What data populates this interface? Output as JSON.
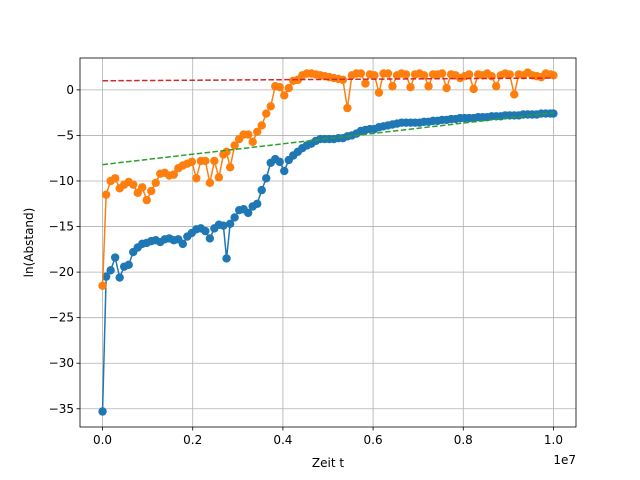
{
  "chart_data": {
    "type": "line",
    "title": "",
    "xlabel": "Zeit t",
    "ylabel": "ln(Abstand)",
    "x_offset_label": "1e7",
    "xlim": [
      -0.05,
      1.05
    ],
    "ylim": [
      -37,
      3.5
    ],
    "x_scale_multiplier": 10000000,
    "xticks": [
      0.0,
      0.2,
      0.4,
      0.6,
      0.8,
      1.0
    ],
    "xtick_labels": [
      "0.0",
      "0.2",
      "0.4",
      "0.6",
      "0.8",
      "1.0"
    ],
    "yticks": [
      0,
      -5,
      -10,
      -15,
      -20,
      -25,
      -30,
      -35
    ],
    "ytick_labels": [
      "0",
      "−5",
      "−10",
      "−15",
      "−20",
      "−25",
      "−30",
      "−35"
    ],
    "grid": true,
    "series": [
      {
        "color": "#1f77b4",
        "style": "line-marker",
        "points": [
          [
            0.0,
            -35.3
          ],
          [
            0.008,
            -20.5
          ],
          [
            0.018,
            -19.8
          ],
          [
            0.028,
            -18.4
          ],
          [
            0.038,
            -20.6
          ],
          [
            0.048,
            -19.4
          ],
          [
            0.058,
            -19.2
          ],
          [
            0.068,
            -17.8
          ],
          [
            0.078,
            -17.3
          ],
          [
            0.088,
            -16.9
          ],
          [
            0.098,
            -16.8
          ],
          [
            0.108,
            -16.6
          ],
          [
            0.118,
            -16.5
          ],
          [
            0.128,
            -16.7
          ],
          [
            0.138,
            -16.4
          ],
          [
            0.148,
            -16.3
          ],
          [
            0.158,
            -16.5
          ],
          [
            0.168,
            -16.4
          ],
          [
            0.178,
            -16.9
          ],
          [
            0.188,
            -16.1
          ],
          [
            0.198,
            -15.7
          ],
          [
            0.208,
            -15.3
          ],
          [
            0.218,
            -15.2
          ],
          [
            0.228,
            -15.5
          ],
          [
            0.238,
            -16.3
          ],
          [
            0.248,
            -15.2
          ],
          [
            0.258,
            -14.8
          ],
          [
            0.268,
            -14.9
          ],
          [
            0.275,
            -18.5
          ],
          [
            0.283,
            -14.7
          ],
          [
            0.293,
            -14.0
          ],
          [
            0.303,
            -13.2
          ],
          [
            0.313,
            -13.1
          ],
          [
            0.323,
            -13.5
          ],
          [
            0.333,
            -12.8
          ],
          [
            0.343,
            -12.5
          ],
          [
            0.353,
            -11.0
          ],
          [
            0.363,
            -9.7
          ],
          [
            0.373,
            -8.0
          ],
          [
            0.383,
            -7.6
          ],
          [
            0.393,
            -7.9
          ],
          [
            0.403,
            -8.9
          ],
          [
            0.413,
            -7.7
          ],
          [
            0.423,
            -7.2
          ],
          [
            0.433,
            -6.8
          ],
          [
            0.443,
            -6.4
          ],
          [
            0.453,
            -6.1
          ],
          [
            0.463,
            -5.9
          ],
          [
            0.473,
            -5.6
          ],
          [
            0.483,
            -5.4
          ],
          [
            0.493,
            -5.4
          ],
          [
            0.503,
            -5.4
          ],
          [
            0.513,
            -5.4
          ],
          [
            0.523,
            -5.3
          ],
          [
            0.533,
            -5.3
          ],
          [
            0.543,
            -5.1
          ],
          [
            0.553,
            -5.0
          ],
          [
            0.563,
            -4.8
          ],
          [
            0.573,
            -4.5
          ],
          [
            0.583,
            -4.4
          ],
          [
            0.593,
            -4.3
          ],
          [
            0.603,
            -4.3
          ],
          [
            0.613,
            -4.1
          ],
          [
            0.623,
            -4.0
          ],
          [
            0.633,
            -3.9
          ],
          [
            0.643,
            -3.8
          ],
          [
            0.653,
            -3.7
          ],
          [
            0.663,
            -3.6
          ],
          [
            0.673,
            -3.6
          ],
          [
            0.683,
            -3.6
          ],
          [
            0.693,
            -3.6
          ],
          [
            0.703,
            -3.6
          ],
          [
            0.713,
            -3.5
          ],
          [
            0.723,
            -3.5
          ],
          [
            0.733,
            -3.4
          ],
          [
            0.743,
            -3.4
          ],
          [
            0.753,
            -3.3
          ],
          [
            0.763,
            -3.3
          ],
          [
            0.773,
            -3.2
          ],
          [
            0.783,
            -3.2
          ],
          [
            0.793,
            -3.1
          ],
          [
            0.803,
            -3.1
          ],
          [
            0.813,
            -3.1
          ],
          [
            0.823,
            -3.1
          ],
          [
            0.833,
            -3.0
          ],
          [
            0.843,
            -3.0
          ],
          [
            0.853,
            -3.0
          ],
          [
            0.863,
            -2.9
          ],
          [
            0.873,
            -2.9
          ],
          [
            0.883,
            -2.9
          ],
          [
            0.893,
            -2.8
          ],
          [
            0.903,
            -2.8
          ],
          [
            0.913,
            -2.8
          ],
          [
            0.923,
            -2.8
          ],
          [
            0.933,
            -2.7
          ],
          [
            0.943,
            -2.7
          ],
          [
            0.953,
            -2.7
          ],
          [
            0.963,
            -2.7
          ],
          [
            0.973,
            -2.6
          ],
          [
            0.983,
            -2.6
          ],
          [
            0.993,
            -2.6
          ],
          [
            1.0,
            -2.6
          ]
        ]
      },
      {
        "color": "#ff7f0e",
        "style": "line-marker",
        "points": [
          [
            0.0,
            -21.5
          ],
          [
            0.008,
            -11.5
          ],
          [
            0.018,
            -10.0
          ],
          [
            0.028,
            -9.7
          ],
          [
            0.038,
            -10.8
          ],
          [
            0.048,
            -10.4
          ],
          [
            0.058,
            -10.1
          ],
          [
            0.068,
            -10.4
          ],
          [
            0.078,
            -11.3
          ],
          [
            0.088,
            -10.7
          ],
          [
            0.098,
            -12.1
          ],
          [
            0.108,
            -11.1
          ],
          [
            0.118,
            -10.2
          ],
          [
            0.128,
            -9.2
          ],
          [
            0.138,
            -9.1
          ],
          [
            0.148,
            -9.4
          ],
          [
            0.158,
            -9.3
          ],
          [
            0.168,
            -8.6
          ],
          [
            0.178,
            -8.3
          ],
          [
            0.188,
            -8.1
          ],
          [
            0.198,
            -7.9
          ],
          [
            0.208,
            -9.7
          ],
          [
            0.218,
            -7.8
          ],
          [
            0.228,
            -7.8
          ],
          [
            0.238,
            -10.2
          ],
          [
            0.248,
            -7.8
          ],
          [
            0.258,
            -9.6
          ],
          [
            0.268,
            -7.1
          ],
          [
            0.275,
            -6.8
          ],
          [
            0.283,
            -8.5
          ],
          [
            0.293,
            -6.1
          ],
          [
            0.303,
            -5.4
          ],
          [
            0.313,
            -4.9
          ],
          [
            0.323,
            -4.9
          ],
          [
            0.333,
            -5.7
          ],
          [
            0.343,
            -4.6
          ],
          [
            0.353,
            -3.9
          ],
          [
            0.363,
            -2.6
          ],
          [
            0.373,
            -1.8
          ],
          [
            0.383,
            0.4
          ],
          [
            0.393,
            0.3
          ],
          [
            0.403,
            -0.6
          ],
          [
            0.413,
            0.2
          ],
          [
            0.423,
            1.0
          ],
          [
            0.433,
            1.1
          ],
          [
            0.443,
            1.6
          ],
          [
            0.453,
            1.8
          ],
          [
            0.463,
            1.8
          ],
          [
            0.473,
            1.7
          ],
          [
            0.483,
            1.6
          ],
          [
            0.493,
            1.5
          ],
          [
            0.503,
            1.4
          ],
          [
            0.513,
            1.3
          ],
          [
            0.523,
            1.2
          ],
          [
            0.533,
            1.1
          ],
          [
            0.543,
            -2.0
          ],
          [
            0.553,
            1.6
          ],
          [
            0.563,
            1.8
          ],
          [
            0.573,
            1.8
          ],
          [
            0.583,
            0.7
          ],
          [
            0.593,
            1.7
          ],
          [
            0.603,
            1.6
          ],
          [
            0.613,
            -0.3
          ],
          [
            0.623,
            1.8
          ],
          [
            0.633,
            1.8
          ],
          [
            0.643,
            0.4
          ],
          [
            0.653,
            1.6
          ],
          [
            0.663,
            1.8
          ],
          [
            0.673,
            1.7
          ],
          [
            0.683,
            0.3
          ],
          [
            0.693,
            1.7
          ],
          [
            0.703,
            1.8
          ],
          [
            0.713,
            1.6
          ],
          [
            0.723,
            0.4
          ],
          [
            0.733,
            1.7
          ],
          [
            0.743,
            1.7
          ],
          [
            0.753,
            1.8
          ],
          [
            0.763,
            0.2
          ],
          [
            0.773,
            1.7
          ],
          [
            0.783,
            1.6
          ],
          [
            0.793,
            1.3
          ],
          [
            0.803,
            1.5
          ],
          [
            0.813,
            1.7
          ],
          [
            0.823,
            0.1
          ],
          [
            0.833,
            1.7
          ],
          [
            0.843,
            1.6
          ],
          [
            0.853,
            1.8
          ],
          [
            0.863,
            1.5
          ],
          [
            0.873,
            0.4
          ],
          [
            0.883,
            1.6
          ],
          [
            0.893,
            1.8
          ],
          [
            0.903,
            1.7
          ],
          [
            0.913,
            -0.5
          ],
          [
            0.923,
            1.7
          ],
          [
            0.933,
            1.6
          ],
          [
            0.943,
            1.9
          ],
          [
            0.953,
            1.6
          ],
          [
            0.963,
            1.5
          ],
          [
            0.973,
            1.4
          ],
          [
            0.983,
            1.8
          ],
          [
            0.993,
            1.7
          ],
          [
            1.0,
            1.6
          ]
        ]
      },
      {
        "color": "#2ca02c",
        "style": "dashed",
        "points": [
          [
            0.0,
            -8.2
          ],
          [
            1.0,
            -2.5
          ]
        ]
      },
      {
        "color": "#d62728",
        "style": "dashed",
        "points": [
          [
            0.0,
            1.0
          ],
          [
            1.0,
            1.3
          ]
        ]
      }
    ]
  }
}
